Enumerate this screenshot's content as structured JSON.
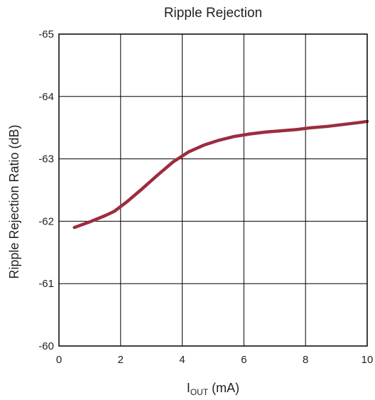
{
  "chart_data": {
    "type": "line",
    "title": "Ripple Rejection",
    "xlabel_main": "I",
    "xlabel_sub": "OUT",
    "xlabel_unit": " (mA)",
    "ylabel": "Ripple Rejection Ratio (dB)",
    "xlim": [
      0,
      10
    ],
    "ylim": [
      -60,
      -65
    ],
    "x_ticks": [
      0,
      2,
      4,
      6,
      8,
      10
    ],
    "x_tick_labels": [
      "0",
      "2",
      "4",
      "6",
      "8",
      "10"
    ],
    "y_ticks": [
      -65,
      -64,
      -63,
      -62,
      -61,
      -60
    ],
    "y_tick_labels": [
      "-65",
      "-64",
      "-63",
      "-62",
      "-61",
      "-60"
    ],
    "grid": true,
    "series": [
      {
        "color": "#9b2d3f",
        "x": [
          0.5,
          1.0,
          1.5,
          1.8,
          2.2,
          2.7,
          3.2,
          3.7,
          4.2,
          4.7,
          5.2,
          5.7,
          6.2,
          6.7,
          7.2,
          7.7,
          8.2,
          8.7,
          9.2,
          9.7,
          10.0
        ],
        "y": [
          -61.9,
          -61.99,
          -62.09,
          -62.16,
          -62.31,
          -62.52,
          -62.74,
          -62.95,
          -63.11,
          -63.22,
          -63.3,
          -63.36,
          -63.4,
          -63.43,
          -63.45,
          -63.47,
          -63.5,
          -63.52,
          -63.55,
          -63.58,
          -63.6
        ]
      }
    ]
  }
}
